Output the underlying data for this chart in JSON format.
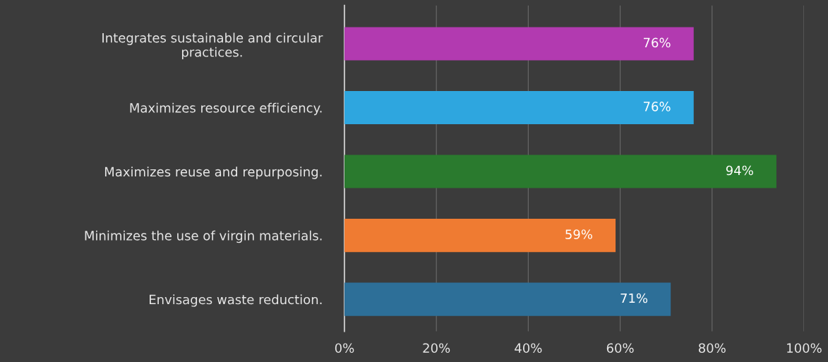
{
  "chart_data": {
    "type": "bar",
    "orientation": "horizontal",
    "categories": [
      "Integrates sustainable and circular\npractices.",
      "Maximizes resource efficiency.",
      "Maximizes reuse and repurposing.",
      "Minimizes the use of virgin materials.",
      "Envisages waste reduction."
    ],
    "values": [
      76,
      76,
      94,
      59,
      71
    ],
    "colors": [
      "#b23ab0",
      "#2ea6df",
      "#2a7a2e",
      "#ef7b32",
      "#2d6f98"
    ],
    "value_labels": [
      "76%",
      "76%",
      "94%",
      "59%",
      "71%"
    ],
    "xlim": [
      0,
      100
    ],
    "xticks": [
      {
        "value": 0,
        "label": "0%"
      },
      {
        "value": 20,
        "label": "20%"
      },
      {
        "value": 40,
        "label": "40%"
      },
      {
        "value": 60,
        "label": "60%"
      },
      {
        "value": 80,
        "label": "80%"
      },
      {
        "value": 100,
        "label": "100%"
      }
    ],
    "grid": "x",
    "legend": false
  }
}
